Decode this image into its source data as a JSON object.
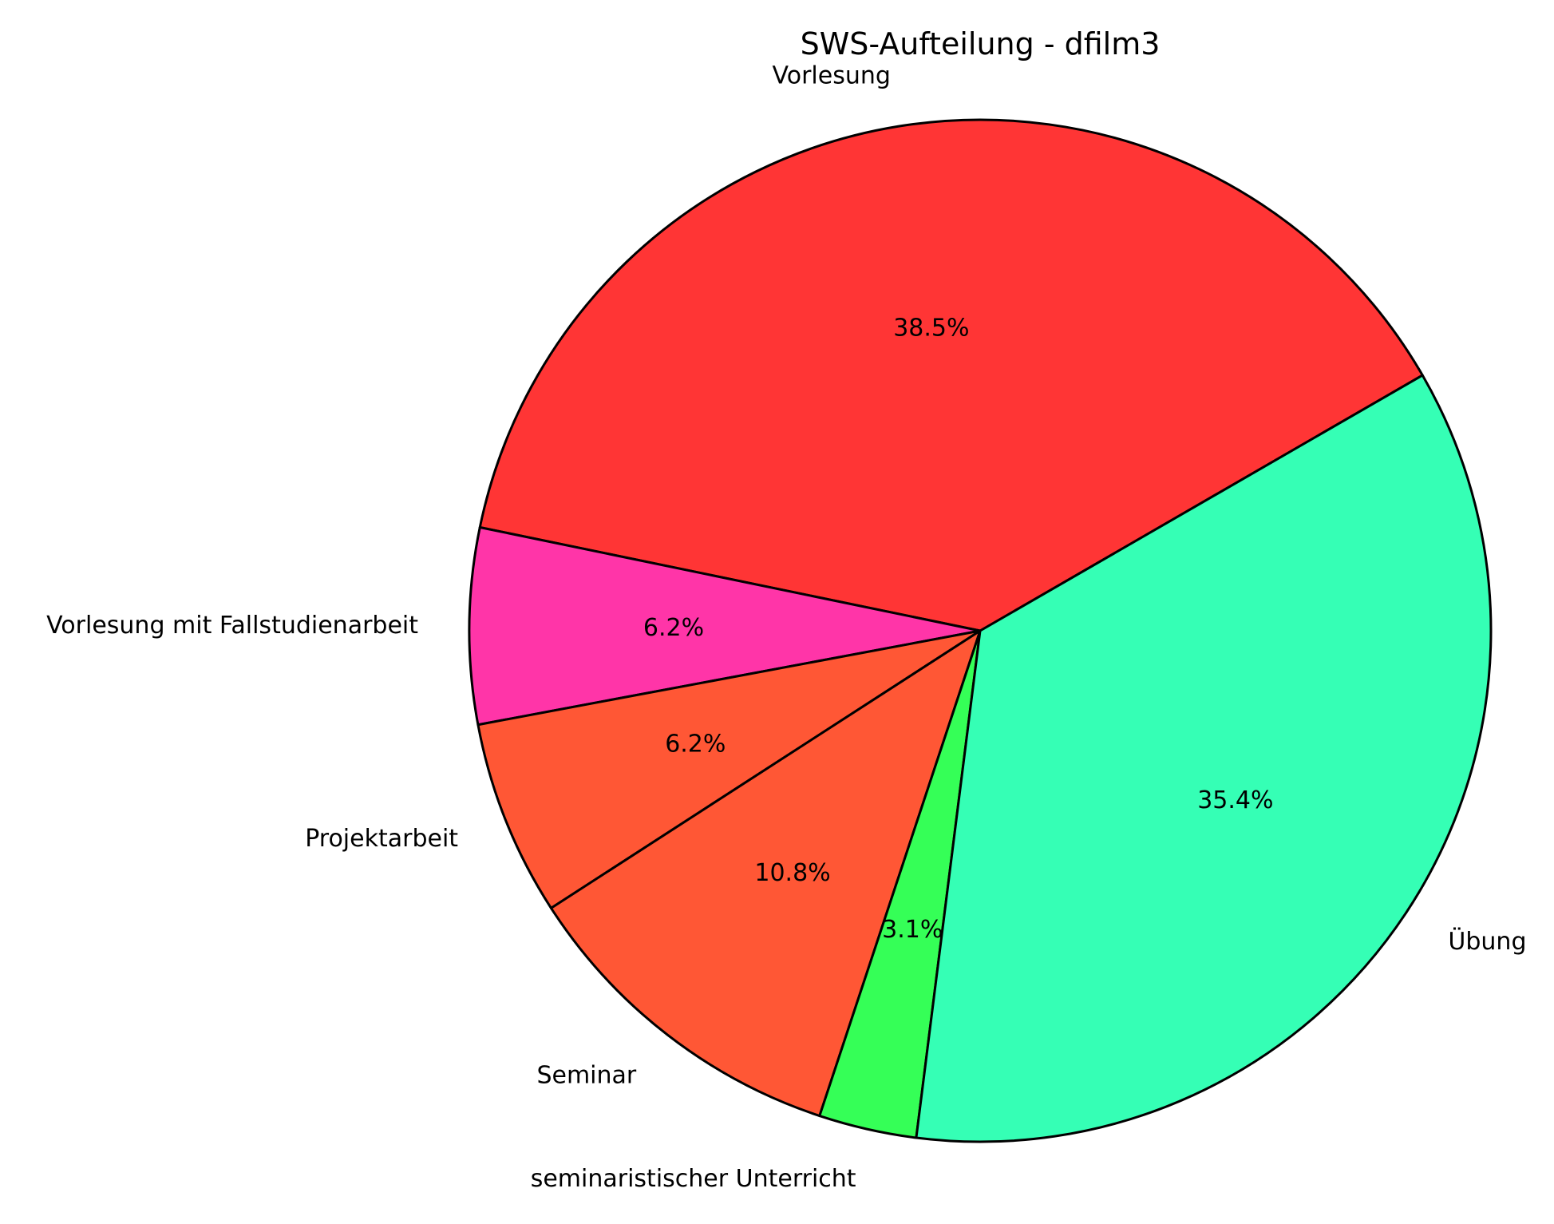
{
  "chart_data": {
    "type": "pie",
    "title": "SWS-Aufteilung - dfilm3",
    "start_angle_deg": 30,
    "direction": "counterclockwise",
    "slices": [
      {
        "label": "Vorlesung",
        "percent_label": "38.5%",
        "value": 38.5,
        "color": "#FF3535"
      },
      {
        "label": "Vorlesung mit Fallstudienarbeit",
        "percent_label": "6.2%",
        "value": 6.2,
        "color": "#FF35A8"
      },
      {
        "label": "Projektarbeit",
        "percent_label": "6.2%",
        "value": 6.2,
        "color": "#FF5735"
      },
      {
        "label": "Seminar",
        "percent_label": "10.8%",
        "value": 10.8,
        "color": "#FF5735"
      },
      {
        "label": "seminaristischer Unterricht",
        "percent_label": "3.1%",
        "value": 3.1,
        "color": "#35FF57"
      },
      {
        "label": "Übung",
        "percent_label": "35.4%",
        "value": 35.4,
        "color": "#35FFB5"
      }
    ]
  }
}
